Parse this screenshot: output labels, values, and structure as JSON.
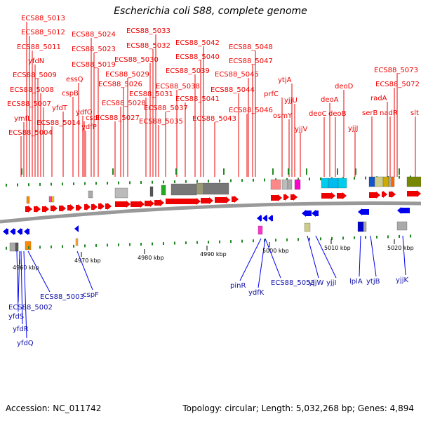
{
  "title": "Escherichia coli S88, complete genome",
  "footer": {
    "accession": "Accession: NC_011742",
    "stats": "Topology: circular; Length: 5,032,268 bp; Genes: 4,894"
  },
  "colors": {
    "forward": "#ee0000",
    "reverse": "#0000ee",
    "backbone": "#999999",
    "tick": "#228822"
  },
  "scale_ticks": [
    {
      "label": "4960 kbp"
    },
    {
      "label": "4970 kbp"
    },
    {
      "label": "4980 kbp"
    },
    {
      "label": "4990 kbp"
    },
    {
      "label": "5000 kbp"
    },
    {
      "label": "5010 kbp"
    },
    {
      "label": "5020 kbp"
    }
  ],
  "top_labels": [
    {
      "label": "ECS88_5013"
    },
    {
      "label": "ECS88_5012"
    },
    {
      "label": "ECS88_5011"
    },
    {
      "label": "yfdN"
    },
    {
      "label": "ECS88_5009"
    },
    {
      "label": "ECS88_5008"
    },
    {
      "label": "ECS88_5007"
    },
    {
      "label": "ymfL"
    },
    {
      "label": "ECS88_5004"
    },
    {
      "label": "yfdT"
    },
    {
      "label": "ECS88_5014"
    },
    {
      "label": "ECS88_5024"
    },
    {
      "label": "ECS88_5023"
    },
    {
      "label": "essQ"
    },
    {
      "label": "ECS88_5019"
    },
    {
      "label": "cspB"
    },
    {
      "label": "cspI"
    },
    {
      "label": "ydfO"
    },
    {
      "label": "ydfP"
    },
    {
      "label": "ECS88_5033"
    },
    {
      "label": "ECS88_5032"
    },
    {
      "label": "ECS88_5030"
    },
    {
      "label": "ECS88_5029"
    },
    {
      "label": "ECS88_5026"
    },
    {
      "label": "ECS88_5031"
    },
    {
      "label": "ECS88_5028"
    },
    {
      "label": "ECS88_5027"
    },
    {
      "label": "ECS88_5042"
    },
    {
      "label": "ECS88_5040"
    },
    {
      "label": "ECS88_5039"
    },
    {
      "label": "ECS88_5038"
    },
    {
      "label": "ECS88_5041"
    },
    {
      "label": "ECS88_5037"
    },
    {
      "label": "ECS88_5035"
    },
    {
      "label": "ECS88_5043"
    },
    {
      "label": "ECS88_5048"
    },
    {
      "label": "ECS88_5047"
    },
    {
      "label": "ECS88_5045"
    },
    {
      "label": "ECS88_5044"
    },
    {
      "label": "ECS88_5046"
    },
    {
      "label": "ytjA"
    },
    {
      "label": "prfC"
    },
    {
      "label": "yjjU"
    },
    {
      "label": "osmY"
    },
    {
      "label": "yjjV"
    },
    {
      "label": "deoA"
    },
    {
      "label": "deoC"
    },
    {
      "label": "deoB"
    },
    {
      "label": "deoD"
    },
    {
      "label": "yjjJ"
    },
    {
      "label": "ECS88_5073"
    },
    {
      "label": "ECS88_5072"
    },
    {
      "label": "radA"
    },
    {
      "label": "serB"
    },
    {
      "label": "nadR"
    },
    {
      "label": "slt"
    }
  ],
  "bottom_labels": [
    {
      "label": "ECS88_5003"
    },
    {
      "label": "ECS88_5002"
    },
    {
      "label": "yfdS"
    },
    {
      "label": "yfdR"
    },
    {
      "label": "yfdQ"
    },
    {
      "label": "cspF"
    },
    {
      "label": "pinR"
    },
    {
      "label": "ydfK"
    },
    {
      "label": "ECS88_5053"
    },
    {
      "label": "yjjW"
    },
    {
      "label": "yjjI"
    },
    {
      "label": "lplA"
    },
    {
      "label": "ytjB"
    },
    {
      "label": "yjjK"
    }
  ]
}
